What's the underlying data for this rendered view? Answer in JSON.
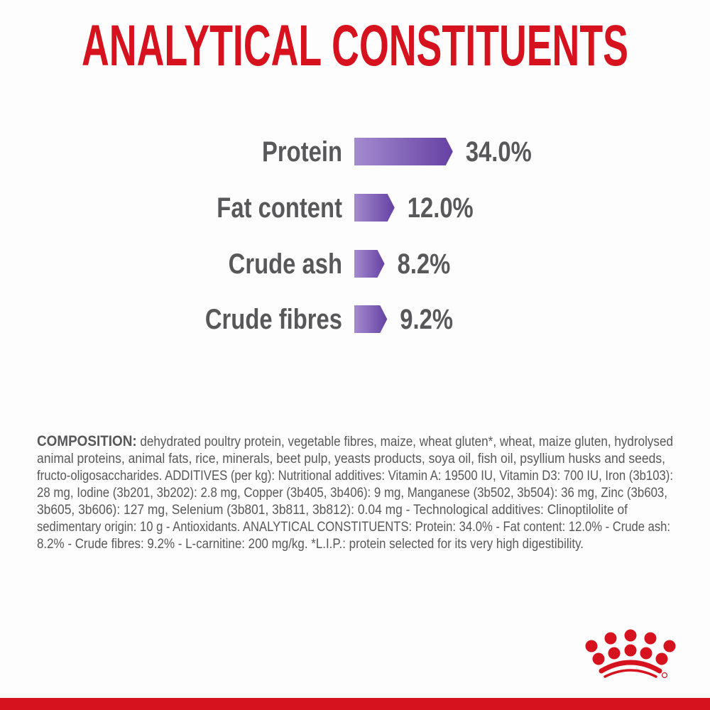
{
  "title": "ANALYTICAL CONSTITUENTS",
  "colors": {
    "brand_red": "#d5121e",
    "text_grey": "#58585a",
    "bar_light": "#a48bcf",
    "bar_dark": "#6541a3"
  },
  "constituents": [
    {
      "label": "Protein",
      "value": "34.0%",
      "percent": 34.0
    },
    {
      "label": "Fat content",
      "value": "12.0%",
      "percent": 12.0
    },
    {
      "label": "Crude ash",
      "value": "8.2%",
      "percent": 8.2
    },
    {
      "label": "Crude fibres",
      "value": "9.2%",
      "percent": 9.2
    }
  ],
  "composition": {
    "heading": "COMPOSITION:",
    "lines": [
      " dehydrated poultry protein, vegetable fibres, maize, wheat gluten*, wheat, maize gluten, hydrolysed",
      "animal proteins, animal fats, rice, minerals, beet pulp, yeasts products, soya oil, fish oil, psyllium husks and seeds,",
      "fructo-oligosaccharides. ADDITIVES (per kg): Nutritional additives: Vitamin A: 19500 IU, Vitamin D3: 700 IU, Iron (3b103):",
      "28 mg, Iodine (3b201, 3b202): 2.8 mg, Copper (3b405, 3b406): 9 mg, Manganese (3b502, 3b504): 36 mg, Zinc (3b603,",
      "3b605, 3b606): 127 mg, Selenium (3b801, 3b811, 3b812): 0.04 mg - Technological additives: Clinoptilolite of",
      "sedimentary origin: 10 g - Antioxidants. ANALYTICAL CONSTITUENTS: Protein: 34.0% - Fat content: 12.0% - Crude ash:",
      "8.2% - Crude fibres: 9.2% - L-carnitine: 200 mg/kg. *L.I.P.: protein selected for its very high digestibility."
    ]
  },
  "logo": {
    "name": "royal-canin-crown-logo"
  }
}
